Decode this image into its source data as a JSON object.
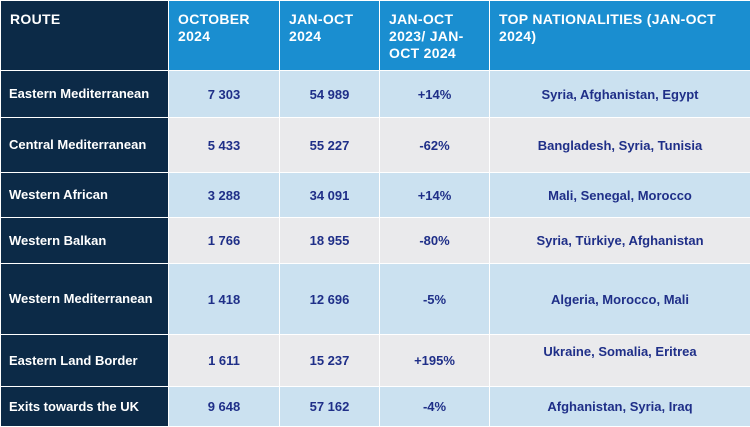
{
  "headers": [
    "ROUTE",
    "OCTOBER 2024",
    "JAN-OCT 2024",
    "JAN-OCT 2023/ JAN-OCT 2024",
    "TOP NATIONALITIES (JAN-OCT 2024)"
  ],
  "rows": [
    {
      "route": "Eastern Mediterranean",
      "october": "7 303",
      "jan_oct": "54 989",
      "change": "+14%",
      "nationalities": "Syria, Afghanistan, Egypt"
    },
    {
      "route": "Central Mediterranean",
      "october": "5 433",
      "jan_oct": "55 227",
      "change": "-62%",
      "nationalities": "Bangladesh, Syria, Tunisia"
    },
    {
      "route": "Western African",
      "october": "3 288",
      "jan_oct": "34 091",
      "change": "+14%",
      "nationalities": "Mali, Senegal, Morocco"
    },
    {
      "route": "Western Balkan",
      "october": "1 766",
      "jan_oct": "18 955",
      "change": "-80%",
      "nationalities": "Syria, Türkiye, Afghanistan"
    },
    {
      "route": "Western Mediterranean",
      "october": "1 418",
      "jan_oct": "12 696",
      "change": "-5%",
      "nationalities": "Algeria, Morocco, Mali"
    },
    {
      "route": "Eastern Land Border",
      "october": "1 611",
      "jan_oct": "15 237",
      "change": "+195%",
      "nationalities": "Ukraine, Somalia, Eritrea"
    },
    {
      "route": "Exits towards the UK",
      "october": "9 648",
      "jan_oct": "57 162",
      "change": "-4%",
      "nationalities": "Afghanistan, Syria, Iraq"
    }
  ]
}
